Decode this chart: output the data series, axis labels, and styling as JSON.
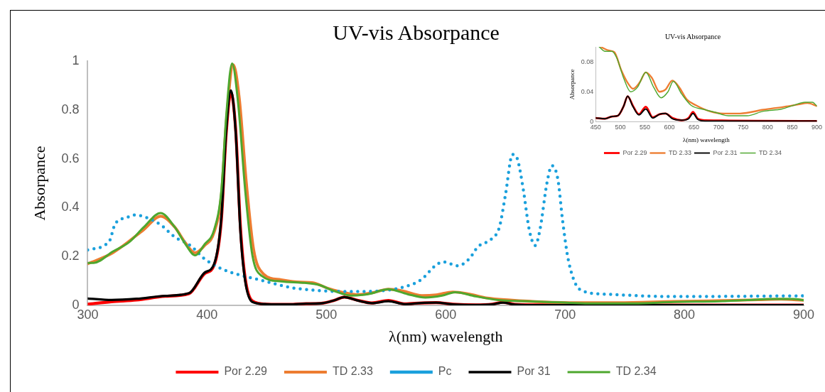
{
  "chart_data": [
    {
      "type": "line",
      "title": "UV-vis Absorpance",
      "xlabel": "λ(nm) wavelength",
      "ylabel": "Absorpance",
      "xlim": [
        300,
        900
      ],
      "xticks": [
        300,
        400,
        500,
        600,
        700,
        800,
        900
      ],
      "ylim": [
        0,
        1
      ],
      "yticks": [
        0,
        0.2,
        0.4,
        0.6,
        0.8,
        1
      ],
      "legend": "bottom",
      "series": [
        {
          "name": "Por 2.29",
          "color": "#ff0000",
          "x": [
            300,
            320,
            341,
            365,
            385,
            398,
            406,
            412,
            416,
            420,
            424,
            428,
            432,
            438,
            450,
            469,
            483,
            495,
            507,
            515,
            526,
            538,
            552,
            566,
            580,
            592,
            606,
            625,
            639,
            648,
            658,
            673,
            900
          ],
          "values": [
            0.005,
            0.015,
            0.022,
            0.037,
            0.048,
            0.13,
            0.165,
            0.35,
            0.7,
            0.87,
            0.72,
            0.32,
            0.11,
            0.018,
            0.005,
            0.004,
            0.007,
            0.008,
            0.021,
            0.034,
            0.021,
            0.01,
            0.02,
            0.006,
            0.01,
            0.011,
            0.005,
            0.002,
            0.005,
            0.013,
            0.004,
            0.002,
            0.001
          ]
        },
        {
          "name": "TD 2.33",
          "color": "#ed7d31",
          "x": [
            300,
            321,
            347,
            361,
            373,
            382,
            390,
            398,
            406,
            412,
            416,
            422,
            427,
            433,
            439,
            447,
            462,
            478,
            488,
            502,
            516,
            526,
            540,
            552,
            564,
            580,
            592,
            606,
            620,
            635,
            654,
            682,
            710,
            744,
            791,
            834,
            862,
            881,
            900
          ],
          "values": [
            0.17,
            0.215,
            0.31,
            0.365,
            0.32,
            0.255,
            0.215,
            0.245,
            0.3,
            0.45,
            0.74,
            0.985,
            0.85,
            0.5,
            0.23,
            0.13,
            0.105,
            0.095,
            0.093,
            0.069,
            0.051,
            0.044,
            0.053,
            0.066,
            0.059,
            0.04,
            0.043,
            0.055,
            0.046,
            0.03,
            0.022,
            0.014,
            0.011,
            0.011,
            0.016,
            0.02,
            0.023,
            0.025,
            0.021
          ]
        },
        {
          "name": "Pc",
          "color": "#1aa0dc",
          "line_style": "dotted",
          "x": [
            300,
            318,
            323,
            333,
            339,
            349,
            361,
            373,
            386,
            398,
            412,
            426,
            446,
            470,
            493,
            513,
            531,
            564,
            579,
            593,
            598,
            610,
            620,
            627,
            638,
            645,
            650,
            656,
            660,
            665,
            670,
            675,
            679,
            685,
            689,
            694,
            698,
            703,
            713,
            733,
            790,
            900
          ],
          "values": [
            0.227,
            0.262,
            0.333,
            0.36,
            0.37,
            0.36,
            0.33,
            0.28,
            0.245,
            0.19,
            0.15,
            0.126,
            0.102,
            0.073,
            0.061,
            0.057,
            0.057,
            0.074,
            0.104,
            0.169,
            0.178,
            0.162,
            0.192,
            0.24,
            0.27,
            0.32,
            0.45,
            0.618,
            0.6,
            0.475,
            0.31,
            0.245,
            0.31,
            0.505,
            0.572,
            0.516,
            0.346,
            0.18,
            0.063,
            0.046,
            0.036,
            0.039
          ]
        },
        {
          "name": "Por 31",
          "color": "#000000",
          "x": [
            300,
            320,
            341,
            365,
            385,
            398,
            406,
            412,
            416,
            420,
            424,
            428,
            432,
            438,
            450,
            469,
            483,
            495,
            507,
            515,
            526,
            538,
            552,
            566,
            580,
            592,
            606,
            625,
            639,
            648,
            658,
            673,
            900
          ],
          "values": [
            0.028,
            0.022,
            0.027,
            0.039,
            0.05,
            0.134,
            0.17,
            0.36,
            0.71,
            0.88,
            0.71,
            0.3,
            0.099,
            0.014,
            0.005,
            0.004,
            0.007,
            0.008,
            0.021,
            0.034,
            0.02,
            0.009,
            0.017,
            0.005,
            0.01,
            0.011,
            0.004,
            0.002,
            0.004,
            0.011,
            0.003,
            0.001,
            0.001
          ]
        },
        {
          "name": "TD 2.34",
          "color": "#4ea72e",
          "x": [
            300,
            305,
            321,
            335,
            347,
            361,
            373,
            382,
            390,
            398,
            406,
            412,
            416,
            421,
            426,
            432,
            438,
            446,
            462,
            482,
            493,
            507,
            521,
            535,
            552,
            568,
            583,
            597,
            608,
            625,
            644,
            673,
            696,
            720,
            758,
            791,
            829,
            853,
            876,
            891,
            900
          ],
          "values": [
            0.174,
            0.174,
            0.22,
            0.26,
            0.32,
            0.378,
            0.32,
            0.25,
            0.205,
            0.25,
            0.31,
            0.47,
            0.77,
            0.99,
            0.83,
            0.47,
            0.205,
            0.12,
            0.098,
            0.092,
            0.085,
            0.058,
            0.04,
            0.046,
            0.066,
            0.046,
            0.032,
            0.04,
            0.054,
            0.037,
            0.022,
            0.016,
            0.012,
            0.008,
            0.008,
            0.014,
            0.017,
            0.022,
            0.026,
            0.026,
            0.021
          ]
        }
      ]
    },
    {
      "type": "line",
      "title": "UV-vis Absorpance",
      "xlabel": "λ(nm) wavelength",
      "ylabel": "Absorpance",
      "xlim": [
        450,
        900
      ],
      "xticks": [
        450,
        500,
        550,
        600,
        650,
        700,
        750,
        800,
        850,
        900
      ],
      "ylim": [
        0,
        0.1
      ],
      "yticks": [
        0,
        0.04,
        0.08
      ],
      "legend": "bottom",
      "series": [
        {
          "name": "Por 2.29",
          "color": "#ff0000",
          "x": [
            450,
            469,
            483,
            495,
            507,
            515,
            526,
            538,
            552,
            566,
            580,
            592,
            606,
            625,
            639,
            648,
            658,
            673,
            900
          ],
          "values": [
            0.005,
            0.004,
            0.007,
            0.008,
            0.021,
            0.034,
            0.021,
            0.01,
            0.02,
            0.006,
            0.01,
            0.011,
            0.005,
            0.002,
            0.005,
            0.013,
            0.004,
            0.002,
            0.001
          ]
        },
        {
          "name": "TD 2.33",
          "color": "#ed7d31",
          "x": [
            460,
            478,
            488,
            502,
            516,
            526,
            540,
            552,
            564,
            580,
            592,
            606,
            620,
            635,
            654,
            682,
            710,
            744,
            791,
            834,
            862,
            881,
            900
          ],
          "values": [
            0.1,
            0.095,
            0.093,
            0.069,
            0.051,
            0.044,
            0.053,
            0.066,
            0.059,
            0.04,
            0.043,
            0.055,
            0.046,
            0.03,
            0.022,
            0.014,
            0.011,
            0.011,
            0.016,
            0.02,
            0.023,
            0.025,
            0.021
          ]
        },
        {
          "name": "Por 2.31",
          "color": "#000000",
          "x": [
            450,
            469,
            483,
            495,
            507,
            515,
            526,
            538,
            552,
            566,
            580,
            592,
            606,
            625,
            639,
            648,
            658,
            673,
            900
          ],
          "values": [
            0.005,
            0.004,
            0.007,
            0.008,
            0.021,
            0.034,
            0.02,
            0.009,
            0.017,
            0.005,
            0.01,
            0.011,
            0.004,
            0.002,
            0.004,
            0.011,
            0.003,
            0.001,
            0.001
          ]
        },
        {
          "name": "TD 2.34",
          "color": "#4ea72e",
          "x": [
            457,
            469,
            483,
            493,
            507,
            521,
            535,
            552,
            568,
            583,
            597,
            608,
            625,
            644,
            673,
            696,
            720,
            758,
            791,
            829,
            853,
            876,
            891,
            900
          ],
          "values": [
            0.1,
            0.094,
            0.094,
            0.085,
            0.058,
            0.04,
            0.046,
            0.066,
            0.046,
            0.032,
            0.04,
            0.054,
            0.037,
            0.022,
            0.016,
            0.012,
            0.008,
            0.008,
            0.014,
            0.017,
            0.022,
            0.026,
            0.026,
            0.021
          ]
        }
      ]
    }
  ]
}
